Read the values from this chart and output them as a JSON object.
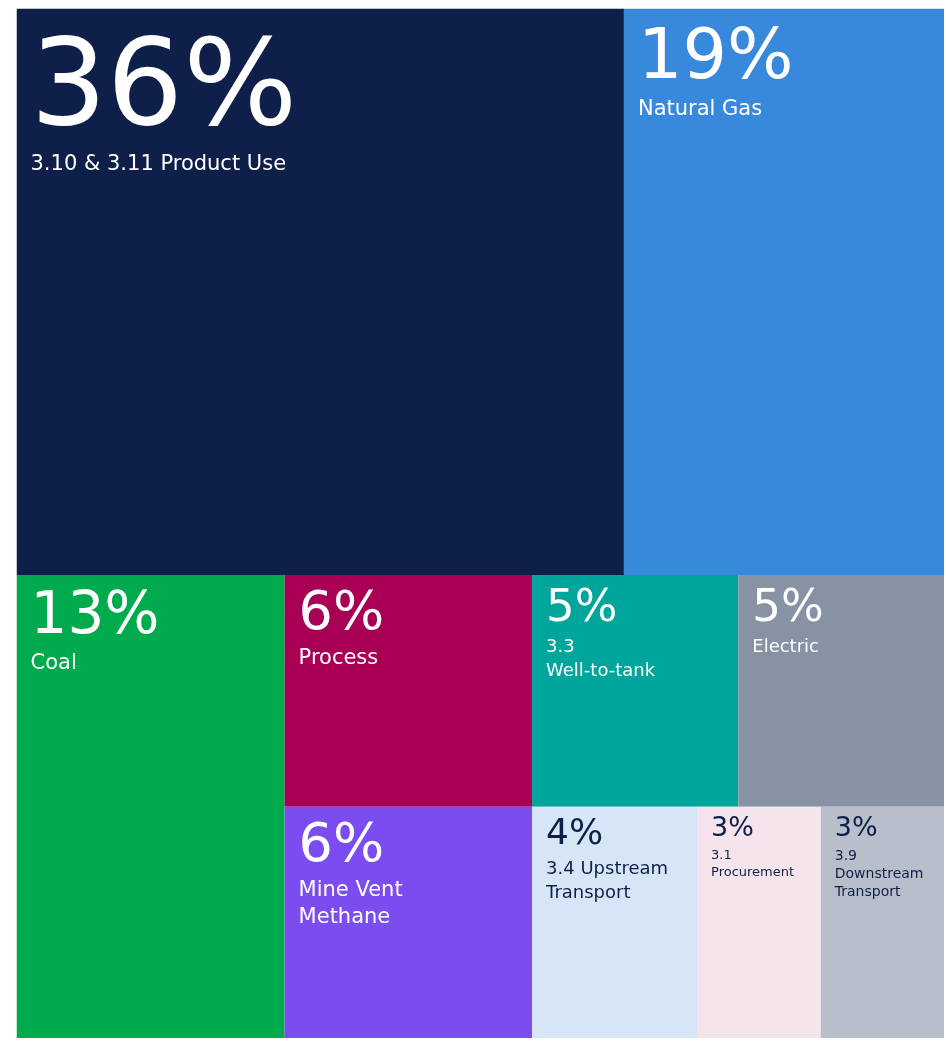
{
  "chart_data": {
    "type": "other",
    "categories": [
      "3.10 & 3.11 Product Use",
      "Natural Gas",
      "Coal",
      "Process",
      "Mine Vent Methane",
      "3.3 Well-to-tank",
      "Electric",
      "3.4 Upstream Transport",
      "3.1 Procurement",
      "3.9 Downstream Transport"
    ],
    "values": [
      36,
      19,
      13,
      6,
      6,
      5,
      5,
      4,
      3,
      3
    ],
    "colors": [
      "#0e2049",
      "#3889dc",
      "#00ab4e",
      "#a80054",
      "#7b4cf0",
      "#00a59b",
      "#8793a4",
      "#d6e6f6",
      "#f6e4ec",
      "#b8bfcb"
    ],
    "value_labels": [
      "36%",
      "19%",
      "13%",
      "6%",
      "6%",
      "5%",
      "5%",
      "4%",
      "3%",
      "3%"
    ]
  }
}
